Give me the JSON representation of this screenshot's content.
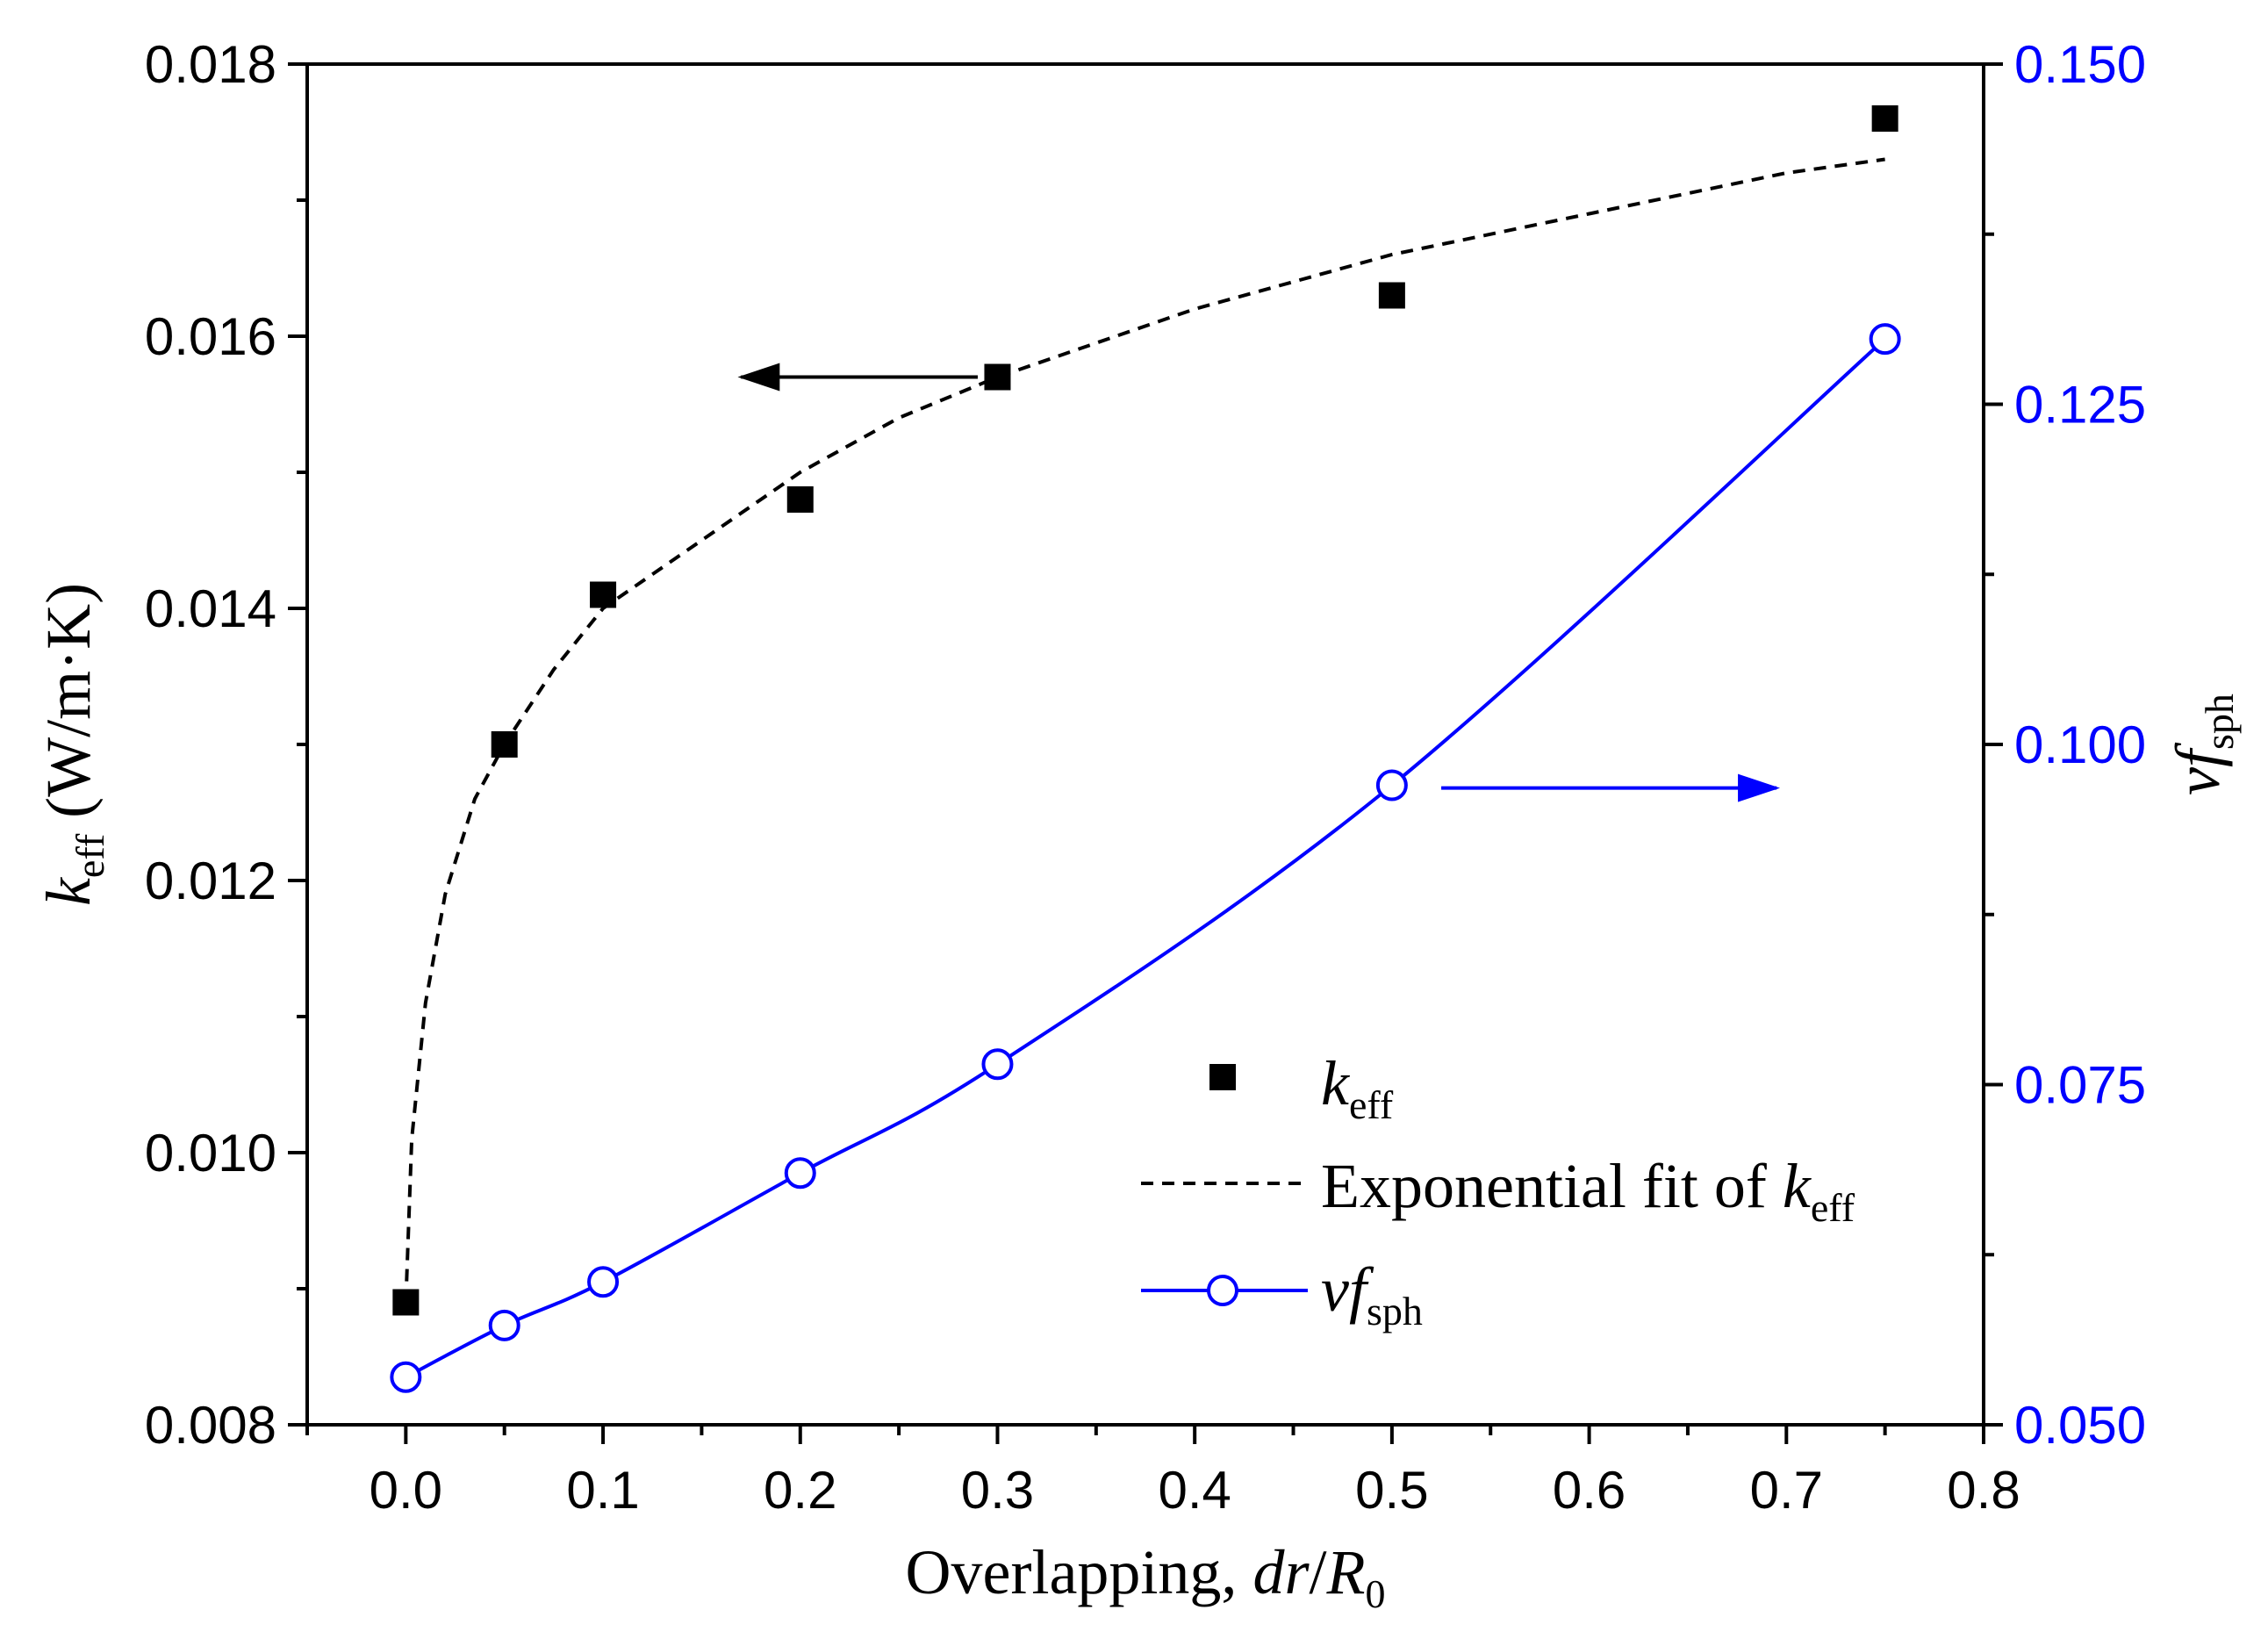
{
  "colors": {
    "black": "#000000",
    "blue": "#0000ff",
    "white": "#ffffff"
  },
  "chart_data": {
    "type": "scatter",
    "x_label": {
      "prefix": "Overlapping, ",
      "italic1": "dr",
      "slash": "/",
      "italic2": "R",
      "sub": "0"
    },
    "y_left_label": {
      "italic": "k",
      "sub": "eff",
      "rest": " (W/m·K)"
    },
    "y_right_label": {
      "italic": "vf",
      "sub": "sph"
    },
    "xlim": [
      -0.05,
      0.8
    ],
    "ylim_left": [
      0.008,
      0.018
    ],
    "ylim_right": [
      0.05,
      0.15
    ],
    "x_ticks": [
      {
        "v": 0.0,
        "label": "0.0"
      },
      {
        "v": 0.1,
        "label": "0.1"
      },
      {
        "v": 0.2,
        "label": "0.2"
      },
      {
        "v": 0.3,
        "label": "0.3"
      },
      {
        "v": 0.4,
        "label": "0.4"
      },
      {
        "v": 0.5,
        "label": "0.5"
      },
      {
        "v": 0.6,
        "label": "0.6"
      },
      {
        "v": 0.7,
        "label": "0.7"
      },
      {
        "v": 0.8,
        "label": "0.8"
      }
    ],
    "y_left_ticks": [
      {
        "v": 0.008,
        "label": "0.008"
      },
      {
        "v": 0.01,
        "label": "0.010"
      },
      {
        "v": 0.012,
        "label": "0.012"
      },
      {
        "v": 0.014,
        "label": "0.014"
      },
      {
        "v": 0.016,
        "label": "0.016"
      },
      {
        "v": 0.018,
        "label": "0.018"
      }
    ],
    "y_right_ticks": [
      {
        "v": 0.05,
        "label": "0.050"
      },
      {
        "v": 0.075,
        "label": "0.075"
      },
      {
        "v": 0.1,
        "label": "0.100"
      },
      {
        "v": 0.125,
        "label": "0.125"
      },
      {
        "v": 0.15,
        "label": "0.150"
      }
    ],
    "series": [
      {
        "name": "keff",
        "legend": {
          "italic": "k",
          "sub": "eff"
        },
        "axis": "left",
        "style": "square-marker",
        "x": [
          0.0,
          0.05,
          0.1,
          0.2,
          0.3,
          0.5,
          0.75
        ],
        "y": [
          0.0089,
          0.013,
          0.0141,
          0.0148,
          0.0157,
          0.0163,
          0.0176
        ]
      },
      {
        "name": "exp-fit",
        "legend": {
          "prefix": "Exponential fit of ",
          "italic": "k",
          "sub": "eff"
        },
        "axis": "left",
        "style": "dashed-line",
        "x": [
          0.0,
          0.003,
          0.01,
          0.02,
          0.035,
          0.05,
          0.075,
          0.1,
          0.15,
          0.2,
          0.25,
          0.3,
          0.4,
          0.5,
          0.6,
          0.7,
          0.75
        ],
        "y": [
          0.0089,
          0.0101,
          0.0111,
          0.0119,
          0.0126,
          0.013,
          0.01355,
          0.014,
          0.0145,
          0.015,
          0.0154,
          0.0157,
          0.0162,
          0.0166,
          0.0169,
          0.0172,
          0.0173
        ]
      },
      {
        "name": "vfsph",
        "legend": {
          "italic": "vf",
          "sub": "sph"
        },
        "axis": "right",
        "style": "open-circle-line",
        "x": [
          0.0,
          0.05,
          0.1,
          0.2,
          0.3,
          0.5,
          0.75
        ],
        "y": [
          0.0535,
          0.0573,
          0.0605,
          0.0685,
          0.0765,
          0.097,
          0.1298
        ]
      }
    ],
    "annotations": [
      {
        "type": "arrow",
        "from": [
          0.29,
          0.0157
        ],
        "to": [
          0.17,
          0.0157
        ],
        "axis": "left",
        "color": "#000000",
        "meaning": "left axis"
      },
      {
        "type": "arrow",
        "from": [
          0.525,
          0.0968
        ],
        "to": [
          0.695,
          0.0968
        ],
        "axis": "right",
        "color": "#0000ff",
        "meaning": "right axis"
      }
    ]
  }
}
